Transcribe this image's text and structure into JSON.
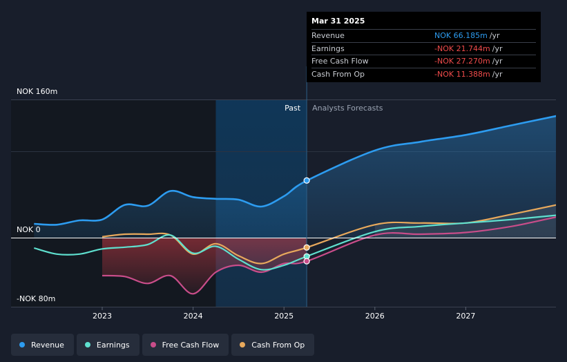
{
  "chart_data": {
    "type": "line",
    "currency": "NOK",
    "unit": "m",
    "y_tick_labels": {
      "top": "NOK 160m",
      "zero": "NOK 0",
      "bottom": "-NOK 80m"
    },
    "ylim": [
      -80,
      160
    ],
    "xlim": [
      2022.25,
      2028.0
    ],
    "x_tick_labels": [
      "2023",
      "2024",
      "2025",
      "2026",
      "2027"
    ],
    "x_ticks": [
      2023,
      2024,
      2025,
      2026,
      2027
    ],
    "past_label": "Past",
    "forecast_label": "Analysts Forecasts",
    "divider_x": 2025.25,
    "highlight_start_x": 2024.25,
    "series": [
      {
        "name": "Revenue",
        "color": "#2d9cf0",
        "points": [
          [
            2022.25,
            16
          ],
          [
            2022.5,
            15
          ],
          [
            2022.75,
            20
          ],
          [
            2023.0,
            21
          ],
          [
            2023.25,
            38
          ],
          [
            2023.5,
            37
          ],
          [
            2023.75,
            54
          ],
          [
            2024.0,
            47
          ],
          [
            2024.25,
            45
          ],
          [
            2024.5,
            44
          ],
          [
            2024.75,
            36
          ],
          [
            2025.0,
            48
          ],
          [
            2025.25,
            66
          ],
          [
            2026.0,
            101
          ],
          [
            2026.5,
            111
          ],
          [
            2027.0,
            119
          ],
          [
            2027.5,
            130
          ],
          [
            2028.0,
            141
          ]
        ]
      },
      {
        "name": "Earnings",
        "color": "#5fe0cf",
        "points": [
          [
            2022.25,
            -12
          ],
          [
            2022.5,
            -19
          ],
          [
            2022.75,
            -19
          ],
          [
            2023.0,
            -13
          ],
          [
            2023.25,
            -11
          ],
          [
            2023.5,
            -8
          ],
          [
            2023.75,
            3
          ],
          [
            2024.0,
            -18
          ],
          [
            2024.25,
            -10
          ],
          [
            2024.5,
            -25
          ],
          [
            2024.75,
            -37
          ],
          [
            2025.0,
            -32
          ],
          [
            2025.25,
            -21.7
          ],
          [
            2026.0,
            7
          ],
          [
            2026.5,
            13
          ],
          [
            2027.0,
            17
          ],
          [
            2027.5,
            21
          ],
          [
            2028.0,
            26
          ]
        ]
      },
      {
        "name": "Free Cash Flow",
        "color": "#c94d8a",
        "points": [
          [
            2023.0,
            -44
          ],
          [
            2023.25,
            -45
          ],
          [
            2023.5,
            -53
          ],
          [
            2023.75,
            -44
          ],
          [
            2024.0,
            -65
          ],
          [
            2024.25,
            -40
          ],
          [
            2024.5,
            -32
          ],
          [
            2024.75,
            -40
          ],
          [
            2025.0,
            -30
          ],
          [
            2025.25,
            -27.3
          ],
          [
            2026.0,
            3
          ],
          [
            2026.5,
            4
          ],
          [
            2027.0,
            6
          ],
          [
            2027.5,
            13
          ],
          [
            2028.0,
            24
          ]
        ]
      },
      {
        "name": "Cash From Op",
        "color": "#e8a95c",
        "points": [
          [
            2023.0,
            1
          ],
          [
            2023.25,
            4
          ],
          [
            2023.5,
            4
          ],
          [
            2023.75,
            3
          ],
          [
            2024.0,
            -19
          ],
          [
            2024.25,
            -7
          ],
          [
            2024.5,
            -21
          ],
          [
            2024.75,
            -30
          ],
          [
            2025.0,
            -19
          ],
          [
            2025.25,
            -11.4
          ],
          [
            2026.0,
            15
          ],
          [
            2026.5,
            17
          ],
          [
            2027.0,
            17
          ],
          [
            2027.5,
            27
          ],
          [
            2028.0,
            38
          ]
        ]
      }
    ],
    "highlight_markers": [
      {
        "series": "Revenue",
        "x": 2025.25,
        "y": 66.185
      },
      {
        "series": "Earnings",
        "x": 2025.25,
        "y": -21.744
      },
      {
        "series": "Free Cash Flow",
        "x": 2025.25,
        "y": -27.27
      },
      {
        "series": "Cash From Op",
        "x": 2025.25,
        "y": -11.388
      }
    ]
  },
  "tooltip": {
    "date": "Mar 31 2025",
    "rows": [
      {
        "label": "Revenue",
        "value": "NOK 66.185m",
        "unit": "/yr",
        "color": "#2d9cf0"
      },
      {
        "label": "Earnings",
        "value": "-NOK 21.744m",
        "unit": "/yr",
        "color": "#f04b4b"
      },
      {
        "label": "Free Cash Flow",
        "value": "-NOK 27.270m",
        "unit": "/yr",
        "color": "#f04b4b"
      },
      {
        "label": "Cash From Op",
        "value": "-NOK 11.388m",
        "unit": "/yr",
        "color": "#f04b4b"
      }
    ]
  },
  "legend": [
    {
      "label": "Revenue",
      "color": "#2d9cf0"
    },
    {
      "label": "Earnings",
      "color": "#5fe0cf"
    },
    {
      "label": "Free Cash Flow",
      "color": "#c94d8a"
    },
    {
      "label": "Cash From Op",
      "color": "#e8a95c"
    }
  ]
}
